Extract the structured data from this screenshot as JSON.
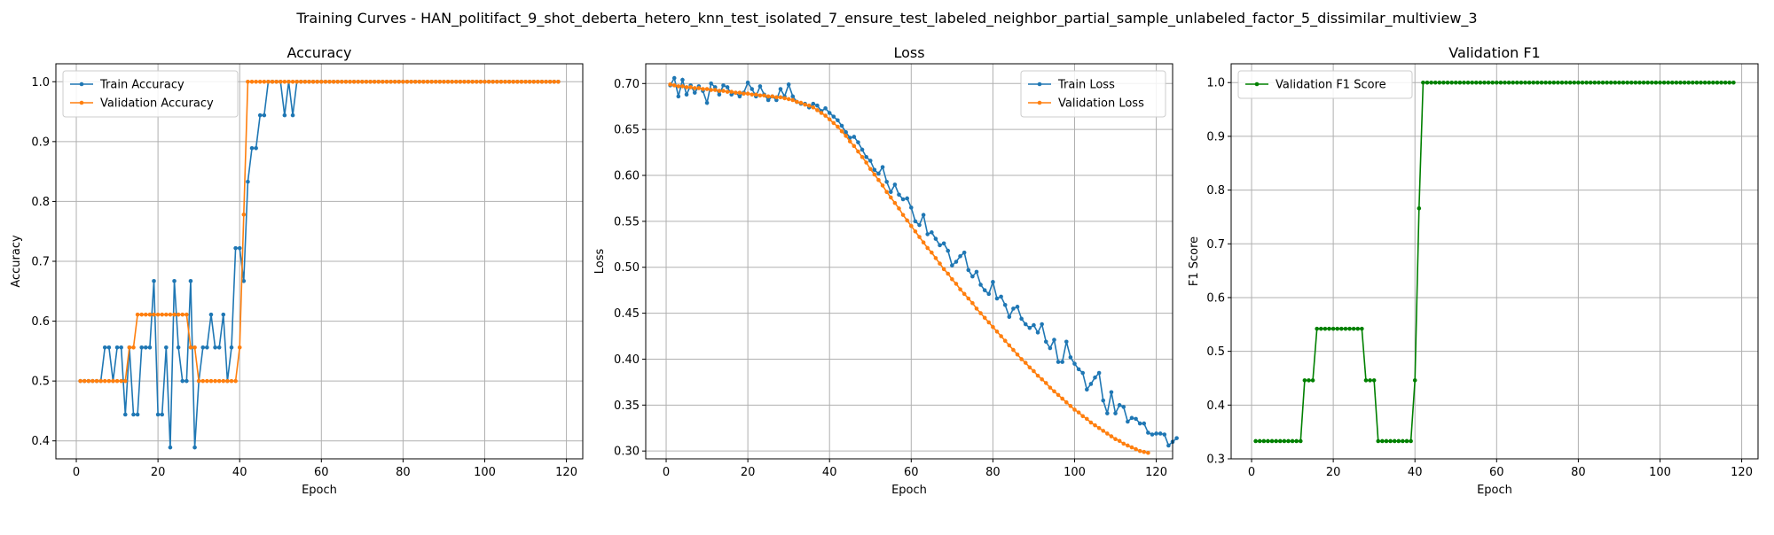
{
  "figure_title": "Training Curves - HAN_politifact_9_shot_deberta_hetero_knn_test_isolated_7_ensure_test_labeled_neighbor_partial_sample_unlabeled_factor_5_dissimilar_multiview_3",
  "colors": {
    "blue": "#1f77b4",
    "orange": "#ff7f0e",
    "green": "#008000",
    "grid": "#b0b0b0"
  },
  "chart_data": [
    {
      "type": "line",
      "title": "Accuracy",
      "xlabel": "Epoch",
      "ylabel": "Accuracy",
      "xlim": [
        -5,
        124
      ],
      "ylim": [
        0.37,
        1.03
      ],
      "xticks": [
        0,
        20,
        40,
        60,
        80,
        100,
        120
      ],
      "yticks": [
        0.4,
        0.5,
        0.6,
        0.7,
        0.8,
        0.9,
        1.0
      ],
      "yticklabels": [
        "0.4",
        "0.5",
        "0.6",
        "0.7",
        "0.8",
        "0.9",
        "1.0"
      ],
      "grid": true,
      "legend_position": "upper-left",
      "series": [
        {
          "name": "Train Accuracy",
          "color": "#1f77b4",
          "values": [
            0.5,
            0.5,
            0.5,
            0.5,
            0.5,
            0.5,
            0.556,
            0.556,
            0.5,
            0.556,
            0.556,
            0.444,
            0.556,
            0.444,
            0.444,
            0.556,
            0.556,
            0.556,
            0.667,
            0.444,
            0.444,
            0.556,
            0.389,
            0.667,
            0.556,
            0.5,
            0.5,
            0.667,
            0.389,
            0.5,
            0.556,
            0.556,
            0.611,
            0.556,
            0.556,
            0.611,
            0.5,
            0.556,
            0.722,
            0.722,
            0.667,
            0.833,
            0.889,
            0.889,
            0.944,
            0.944,
            1.0,
            1.0,
            1.0,
            1.0,
            0.944,
            1.0,
            0.944,
            1.0,
            1.0,
            1.0,
            1.0,
            1.0,
            1.0,
            1.0,
            1.0,
            1.0,
            1.0,
            1.0,
            1.0,
            1.0,
            1.0,
            1.0,
            1.0,
            1.0,
            1.0,
            1.0,
            1.0,
            1.0,
            1.0,
            1.0,
            1.0,
            1.0,
            1.0,
            1.0,
            1.0,
            1.0,
            1.0,
            1.0,
            1.0,
            1.0,
            1.0,
            1.0,
            1.0,
            1.0,
            1.0,
            1.0,
            1.0,
            1.0,
            1.0,
            1.0,
            1.0,
            1.0,
            1.0,
            1.0,
            1.0,
            1.0,
            1.0,
            1.0,
            1.0,
            1.0,
            1.0,
            1.0,
            1.0,
            1.0,
            1.0,
            1.0,
            1.0,
            1.0,
            1.0,
            1.0,
            1.0,
            1.0
          ]
        },
        {
          "name": "Validation Accuracy",
          "color": "#ff7f0e",
          "values": [
            0.5,
            0.5,
            0.5,
            0.5,
            0.5,
            0.5,
            0.5,
            0.5,
            0.5,
            0.5,
            0.5,
            0.5,
            0.556,
            0.556,
            0.611,
            0.611,
            0.611,
            0.611,
            0.611,
            0.611,
            0.611,
            0.611,
            0.611,
            0.611,
            0.611,
            0.611,
            0.611,
            0.556,
            0.556,
            0.5,
            0.5,
            0.5,
            0.5,
            0.5,
            0.5,
            0.5,
            0.5,
            0.5,
            0.5,
            0.556,
            0.778,
            1.0,
            1.0,
            1.0,
            1.0,
            1.0,
            1.0,
            1.0,
            1.0,
            1.0,
            1.0,
            1.0,
            1.0,
            1.0,
            1.0,
            1.0,
            1.0,
            1.0,
            1.0,
            1.0,
            1.0,
            1.0,
            1.0,
            1.0,
            1.0,
            1.0,
            1.0,
            1.0,
            1.0,
            1.0,
            1.0,
            1.0,
            1.0,
            1.0,
            1.0,
            1.0,
            1.0,
            1.0,
            1.0,
            1.0,
            1.0,
            1.0,
            1.0,
            1.0,
            1.0,
            1.0,
            1.0,
            1.0,
            1.0,
            1.0,
            1.0,
            1.0,
            1.0,
            1.0,
            1.0,
            1.0,
            1.0,
            1.0,
            1.0,
            1.0,
            1.0,
            1.0,
            1.0,
            1.0,
            1.0,
            1.0,
            1.0,
            1.0,
            1.0,
            1.0,
            1.0,
            1.0,
            1.0,
            1.0,
            1.0,
            1.0,
            1.0,
            1.0
          ]
        }
      ]
    },
    {
      "type": "line",
      "title": "Loss",
      "xlabel": "Epoch",
      "ylabel": "Loss",
      "xlim": [
        -5,
        124
      ],
      "ylim": [
        0.2915,
        0.7215
      ],
      "xticks": [
        0,
        20,
        40,
        60,
        80,
        100,
        120
      ],
      "yticks": [
        0.3,
        0.35,
        0.4,
        0.45,
        0.5,
        0.55,
        0.6,
        0.65,
        0.7
      ],
      "yticklabels": [
        "0.30",
        "0.35",
        "0.40",
        "0.45",
        "0.50",
        "0.55",
        "0.60",
        "0.65",
        "0.70"
      ],
      "grid": true,
      "legend_position": "upper-right",
      "series": [
        {
          "name": "Train Loss",
          "color": "#1f77b4",
          "values": [
            0.698,
            0.706,
            0.686,
            0.704,
            0.688,
            0.698,
            0.69,
            0.697,
            0.692,
            0.679,
            0.7,
            0.696,
            0.688,
            0.698,
            0.696,
            0.688,
            0.69,
            0.686,
            0.69,
            0.701,
            0.694,
            0.686,
            0.697,
            0.688,
            0.682,
            0.686,
            0.682,
            0.694,
            0.686,
            0.699,
            0.686,
            0.68,
            0.678,
            0.678,
            0.674,
            0.678,
            0.676,
            0.67,
            0.673,
            0.668,
            0.664,
            0.66,
            0.654,
            0.647,
            0.641,
            0.642,
            0.636,
            0.628,
            0.62,
            0.616,
            0.606,
            0.602,
            0.609,
            0.593,
            0.582,
            0.59,
            0.579,
            0.574,
            0.575,
            0.565,
            0.55,
            0.546,
            0.557,
            0.536,
            0.538,
            0.531,
            0.524,
            0.526,
            0.518,
            0.502,
            0.506,
            0.512,
            0.516,
            0.497,
            0.49,
            0.495,
            0.481,
            0.475,
            0.471,
            0.484,
            0.466,
            0.468,
            0.459,
            0.446,
            0.455,
            0.457,
            0.444,
            0.438,
            0.434,
            0.437,
            0.429,
            0.438,
            0.419,
            0.412,
            0.421,
            0.397,
            0.397,
            0.419,
            0.402,
            0.395,
            0.389,
            0.385,
            0.367,
            0.373,
            0.38,
            0.385,
            0.355,
            0.341,
            0.364,
            0.341,
            0.35,
            0.348,
            0.332,
            0.336,
            0.335,
            0.33,
            0.33,
            0.32,
            0.318,
            0.319,
            0.319,
            0.318,
            0.306,
            0.31,
            0.314
          ]
        },
        {
          "name": "Validation Loss",
          "color": "#ff7f0e",
          "values": [
            0.699,
            0.698,
            0.697,
            0.697,
            0.696,
            0.696,
            0.695,
            0.695,
            0.694,
            0.694,
            0.693,
            0.693,
            0.692,
            0.692,
            0.691,
            0.691,
            0.69,
            0.69,
            0.689,
            0.689,
            0.688,
            0.688,
            0.687,
            0.687,
            0.686,
            0.686,
            0.685,
            0.685,
            0.684,
            0.683,
            0.682,
            0.68,
            0.679,
            0.677,
            0.676,
            0.674,
            0.671,
            0.668,
            0.665,
            0.661,
            0.657,
            0.653,
            0.648,
            0.643,
            0.637,
            0.632,
            0.626,
            0.62,
            0.614,
            0.607,
            0.601,
            0.595,
            0.589,
            0.582,
            0.576,
            0.57,
            0.564,
            0.557,
            0.551,
            0.545,
            0.539,
            0.533,
            0.527,
            0.521,
            0.516,
            0.51,
            0.504,
            0.498,
            0.493,
            0.487,
            0.482,
            0.476,
            0.471,
            0.466,
            0.461,
            0.455,
            0.45,
            0.445,
            0.44,
            0.435,
            0.43,
            0.425,
            0.42,
            0.415,
            0.41,
            0.405,
            0.4,
            0.396,
            0.391,
            0.387,
            0.382,
            0.378,
            0.374,
            0.369,
            0.365,
            0.361,
            0.357,
            0.353,
            0.349,
            0.345,
            0.342,
            0.338,
            0.335,
            0.331,
            0.328,
            0.325,
            0.322,
            0.319,
            0.316,
            0.313,
            0.311,
            0.308,
            0.306,
            0.304,
            0.302,
            0.3,
            0.299,
            0.298
          ]
        }
      ]
    },
    {
      "type": "line",
      "title": "Validation F1",
      "xlabel": "Epoch",
      "ylabel": "F1 Score",
      "xlim": [
        -5,
        124
      ],
      "ylim": [
        0.3,
        1.035
      ],
      "xticks": [
        0,
        20,
        40,
        60,
        80,
        100,
        120
      ],
      "yticks": [
        0.3,
        0.4,
        0.5,
        0.6,
        0.7,
        0.8,
        0.9,
        1.0
      ],
      "yticklabels": [
        "0.3",
        "0.4",
        "0.5",
        "0.6",
        "0.7",
        "0.8",
        "0.9",
        "1.0"
      ],
      "grid": true,
      "legend_position": "upper-left",
      "series": [
        {
          "name": "Validation F1 Score",
          "color": "#008000",
          "values": [
            0.333,
            0.333,
            0.333,
            0.333,
            0.333,
            0.333,
            0.333,
            0.333,
            0.333,
            0.333,
            0.333,
            0.333,
            0.446,
            0.446,
            0.446,
            0.542,
            0.542,
            0.542,
            0.542,
            0.542,
            0.542,
            0.542,
            0.542,
            0.542,
            0.542,
            0.542,
            0.542,
            0.446,
            0.446,
            0.446,
            0.333,
            0.333,
            0.333,
            0.333,
            0.333,
            0.333,
            0.333,
            0.333,
            0.333,
            0.446,
            0.766,
            1.0,
            1.0,
            1.0,
            1.0,
            1.0,
            1.0,
            1.0,
            1.0,
            1.0,
            1.0,
            1.0,
            1.0,
            1.0,
            1.0,
            1.0,
            1.0,
            1.0,
            1.0,
            1.0,
            1.0,
            1.0,
            1.0,
            1.0,
            1.0,
            1.0,
            1.0,
            1.0,
            1.0,
            1.0,
            1.0,
            1.0,
            1.0,
            1.0,
            1.0,
            1.0,
            1.0,
            1.0,
            1.0,
            1.0,
            1.0,
            1.0,
            1.0,
            1.0,
            1.0,
            1.0,
            1.0,
            1.0,
            1.0,
            1.0,
            1.0,
            1.0,
            1.0,
            1.0,
            1.0,
            1.0,
            1.0,
            1.0,
            1.0,
            1.0,
            1.0,
            1.0,
            1.0,
            1.0,
            1.0,
            1.0,
            1.0,
            1.0,
            1.0,
            1.0,
            1.0,
            1.0,
            1.0,
            1.0,
            1.0,
            1.0,
            1.0,
            1.0
          ]
        }
      ]
    }
  ]
}
